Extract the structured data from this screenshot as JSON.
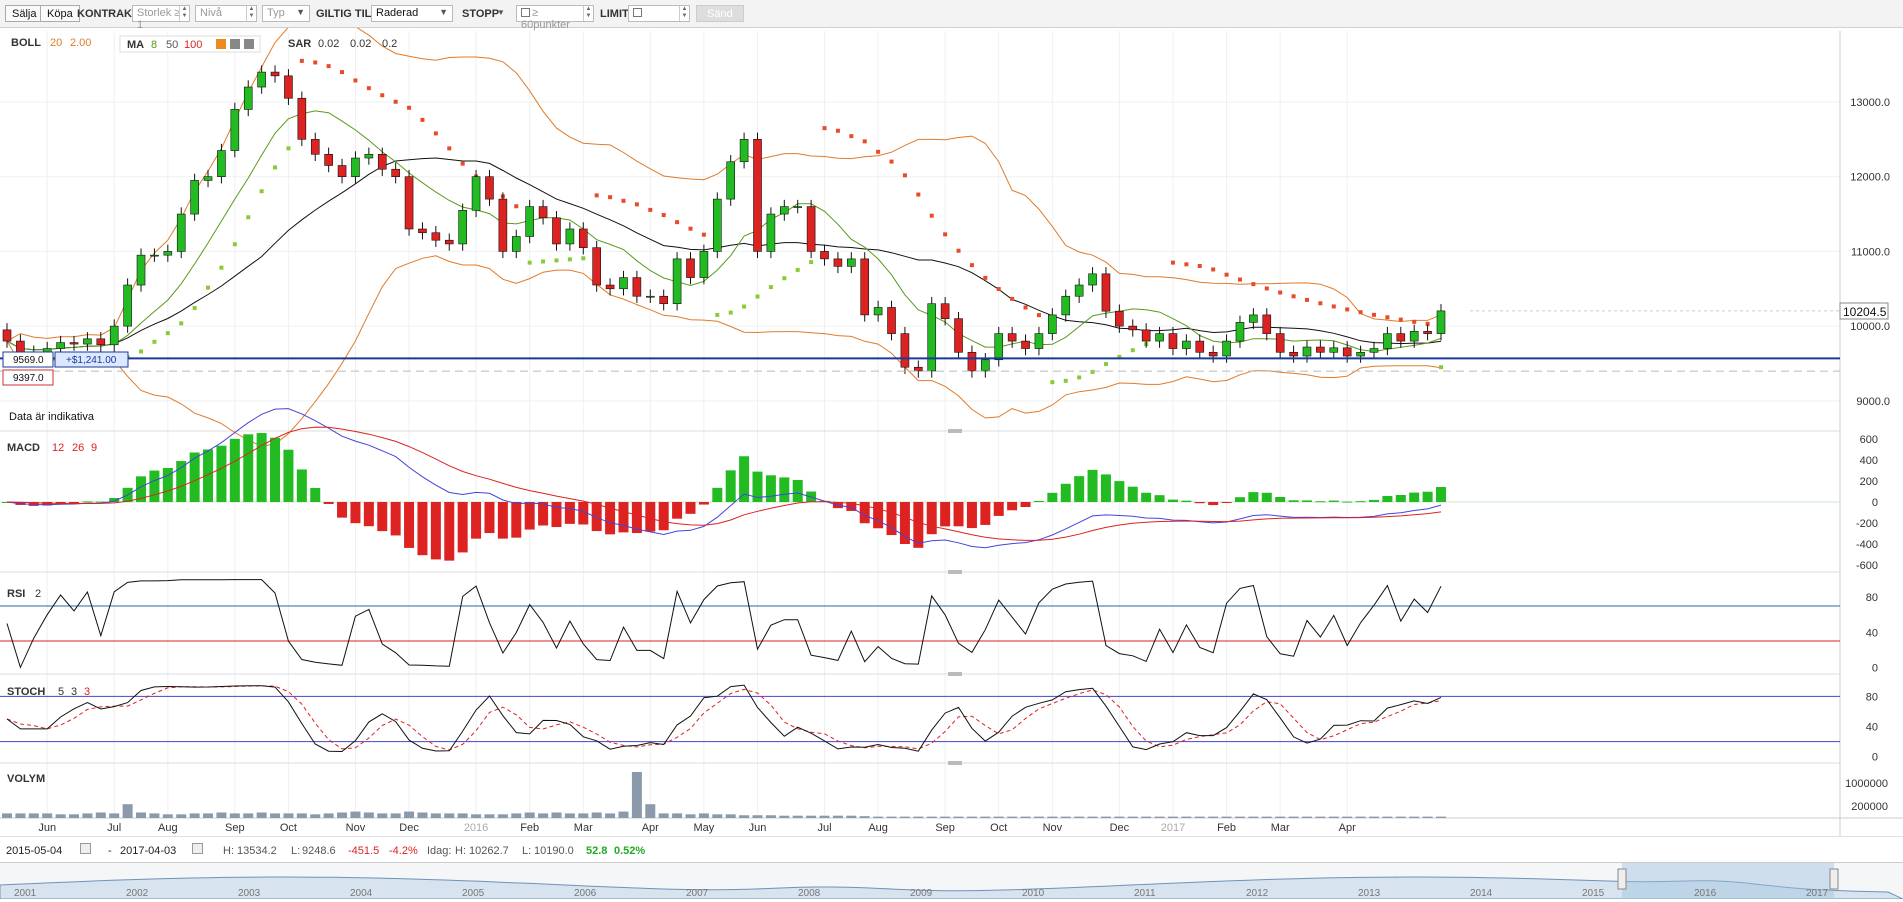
{
  "toolbar": {
    "sell": "Sälja",
    "buy": "Köpa",
    "contract_label": "KONTRAKT",
    "size_placeholder": "Storlek ≥ 1",
    "level_placeholder": "Nivå",
    "type_placeholder": "Typ",
    "valid_label": "GILTIG TILL",
    "valid_value": "Raderad",
    "stop_label": "STOPP",
    "stop_placeholder": "≥ 60punkter",
    "limit_label": "LIMIT",
    "send": "Sänd"
  },
  "colors": {
    "up": "#22bb22",
    "down": "#dd2222",
    "boll": "#e07b2a",
    "ma_fast": "#5a9a1a",
    "ma_slow": "#111111",
    "sar_down": "#e84a2a",
    "sar_up": "#88cc33",
    "macd_line": "#4444dd",
    "signal_line": "#dd2222",
    "level_line": "#1a3a9a"
  },
  "legend": {
    "boll": {
      "name": "BOLL",
      "p1": "20",
      "p2": "2.00"
    },
    "ma": {
      "name": "MA",
      "p1": "8",
      "p2": "50",
      "p3": "100"
    },
    "sar": {
      "name": "SAR",
      "p1": "0.02",
      "p2": "0.02",
      "p3": "0.2"
    },
    "macd": {
      "name": "MACD",
      "p1": "12",
      "p2": "26",
      "p3": "9"
    },
    "rsi": {
      "name": "RSI",
      "p1": "2"
    },
    "stoch": {
      "name": "STOCH",
      "p1": "5",
      "p2": "3",
      "p3": "3"
    },
    "volume": {
      "name": "VOLYM"
    }
  },
  "indicative_note": "Data är indikativa",
  "markers": {
    "entry_price": "9569.0",
    "entry_pl": "+$1,241.00",
    "stop_price": "9397.0",
    "current_price": "10204.5"
  },
  "x_axis": {
    "labels": [
      {
        "label": "Jun",
        "i": 3
      },
      {
        "label": "Jul",
        "i": 8
      },
      {
        "label": "Aug",
        "i": 12
      },
      {
        "label": "Sep",
        "i": 17
      },
      {
        "label": "Oct",
        "i": 21
      },
      {
        "label": "Nov",
        "i": 26
      },
      {
        "label": "Dec",
        "i": 30
      },
      {
        "label": "2016",
        "i": 35,
        "muted": true
      },
      {
        "label": "Feb",
        "i": 39
      },
      {
        "label": "Mar",
        "i": 43
      },
      {
        "label": "Apr",
        "i": 48
      },
      {
        "label": "May",
        "i": 52
      },
      {
        "label": "Jun",
        "i": 56
      },
      {
        "label": "Jul",
        "i": 61
      },
      {
        "label": "Aug",
        "i": 65
      },
      {
        "label": "Sep",
        "i": 70
      },
      {
        "label": "Oct",
        "i": 74
      },
      {
        "label": "Nov",
        "i": 78
      },
      {
        "label": "Dec",
        "i": 83
      },
      {
        "label": "2017",
        "i": 87,
        "muted": true
      },
      {
        "label": "Feb",
        "i": 91
      },
      {
        "label": "Mar",
        "i": 95
      },
      {
        "label": "Apr",
        "i": 100
      }
    ]
  },
  "chart_data": [
    {
      "type": "candlestick",
      "title": "",
      "y_ticks": [
        13000,
        12000,
        11000,
        10000,
        9000
      ],
      "y_tick_labels": [
        "13000.0",
        "12000.0",
        "11000.0",
        "10000.0",
        "9000.0"
      ],
      "ylim": [
        8650,
        13950
      ],
      "x_labels": [
        "Jun",
        "Jul",
        "Aug",
        "Sep",
        "Oct",
        "Nov",
        "Dec",
        "2016",
        "Feb",
        "Mar",
        "Apr",
        "May",
        "Jun",
        "Jul",
        "Aug",
        "Sep",
        "Oct",
        "Nov",
        "Dec",
        "2017",
        "Feb",
        "Mar",
        "Apr"
      ],
      "levels": {
        "position": 9569,
        "stop": 9397,
        "last": 10204.5
      },
      "close": [
        9800,
        9600,
        9650,
        9700,
        9780,
        9760,
        9830,
        9750,
        10000,
        10550,
        10950,
        10950,
        11000,
        11500,
        11950,
        12000,
        12350,
        12900,
        13200,
        13400,
        13350,
        13050,
        12500,
        12300,
        12150,
        12000,
        12250,
        12300,
        12100,
        12000,
        11300,
        11250,
        11150,
        11100,
        11550,
        12000,
        11700,
        11000,
        11200,
        11600,
        11450,
        11100,
        11300,
        11050,
        10550,
        10500,
        10650,
        10400,
        10400,
        10300,
        10900,
        10650,
        11000,
        11700,
        12200,
        12500,
        11000,
        11500,
        11600,
        11600,
        11000,
        10900,
        10800,
        10900,
        10150,
        10250,
        9900,
        9450,
        9400,
        10300,
        10100,
        9650,
        9400,
        9550,
        9900,
        9800,
        9700,
        9900,
        10150,
        10400,
        10550,
        10700,
        10200,
        10000,
        9950,
        9800,
        9900,
        9700,
        9800,
        9650,
        9600,
        9800,
        10050,
        10150,
        9900,
        9650,
        9600,
        9720,
        9650,
        9710,
        9600,
        9650,
        9700,
        9900,
        9800,
        9930,
        9900,
        10204
      ]
    },
    {
      "type": "bar+line",
      "name": "MACD",
      "y_ticks": [
        600,
        400,
        200,
        0,
        -200,
        -400,
        -600
      ],
      "ylim": [
        -630,
        630
      ]
    },
    {
      "type": "line",
      "name": "RSI",
      "y_ticks": [
        80,
        40,
        0
      ],
      "ylim": [
        -3,
        103
      ],
      "levels": [
        70,
        30
      ]
    },
    {
      "type": "line",
      "name": "STOCH",
      "y_ticks": [
        80,
        40,
        0
      ],
      "ylim": [
        -3,
        103
      ],
      "levels": [
        80,
        20
      ]
    },
    {
      "type": "bar",
      "name": "VOLYM",
      "y_tick_labels": [
        "1000000",
        "200000"
      ],
      "values": [
        0.1,
        0.1,
        0.1,
        0.1,
        0.08,
        0.08,
        0.1,
        0.12,
        0.1,
        0.3,
        0.12,
        0.1,
        0.08,
        0.08,
        0.1,
        0.1,
        0.12,
        0.1,
        0.1,
        0.12,
        0.1,
        0.1,
        0.1,
        0.08,
        0.1,
        0.12,
        0.14,
        0.12,
        0.1,
        0.1,
        0.14,
        0.12,
        0.1,
        0.1,
        0.1,
        0.08,
        0.08,
        0.08,
        0.1,
        0.12,
        0.1,
        0.12,
        0.1,
        0.1,
        0.12,
        0.1,
        0.14,
        1.0,
        0.3,
        0.1,
        0.1,
        0.08,
        0.1,
        0.08,
        0.08,
        0.06,
        0.06,
        0.06,
        0.05,
        0.05,
        0.05,
        0.05,
        0.05,
        0.05,
        0.04,
        0.03,
        0.03,
        0.03,
        0.03,
        0.03,
        0.03,
        0.03,
        0.03,
        0.03,
        0.03,
        0.03,
        0.03,
        0.03,
        0.03,
        0.03,
        0.03,
        0.03,
        0.03,
        0.03,
        0.03,
        0.03,
        0.03,
        0.03,
        0.03,
        0.03,
        0.03,
        0.03,
        0.03,
        0.03,
        0.03,
        0.03,
        0.03,
        0.03,
        0.03,
        0.03,
        0.03,
        0.03,
        0.03,
        0.03,
        0.03,
        0.03,
        0.03,
        0.03
      ]
    }
  ],
  "status": {
    "from_date": "2015-05-04",
    "to_date": "2017-04-03",
    "high_label": "H:",
    "high": "13534.2",
    "low_label": "L:",
    "low": "9248.6",
    "change": "-451.5",
    "change_pct": "-4.2%",
    "today_label": "Idag:",
    "today_high_label": "H:",
    "today_high": "10262.7",
    "today_low_label": "L:",
    "today_low": "10190.0",
    "today_change": "52.8",
    "today_change_pct": "0.52%"
  },
  "navigator": {
    "years": [
      "2001",
      "2002",
      "2003",
      "2004",
      "2005",
      "2006",
      "2007",
      "2008",
      "2009",
      "2010",
      "2011",
      "2012",
      "2013",
      "2014",
      "2015",
      "2016",
      "2017"
    ]
  }
}
